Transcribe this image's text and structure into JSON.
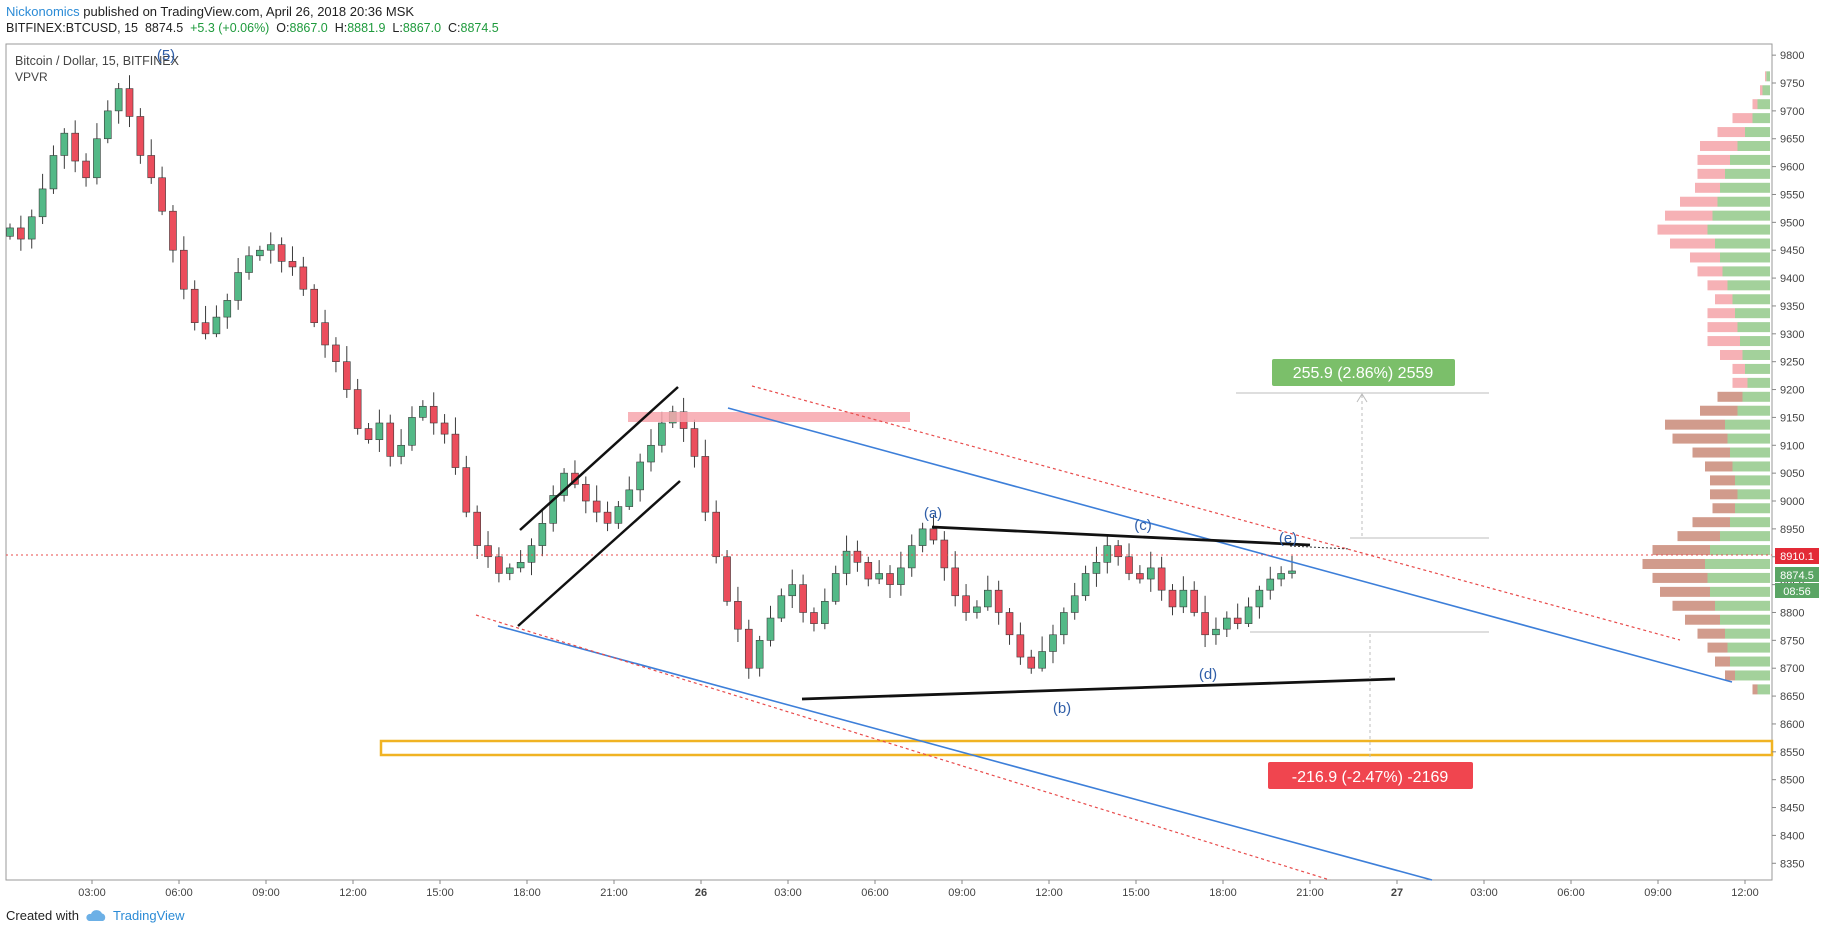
{
  "header": {
    "author": "Nickonomics",
    "published": " published on TradingView.com, April 26, 2018 20:36 MSK",
    "symbol": "BITFINEX:BTCUSD, 15",
    "last": "8874.5",
    "change": "+5.3 (+0.06%)",
    "o_label": "O:",
    "o": "8867.0",
    "h_label": "H:",
    "h": "8881.9",
    "l_label": "L:",
    "l": "8867.0",
    "c_label": "C:",
    "c": "8874.5"
  },
  "legend": {
    "title": "Bitcoin / Dollar, 15, BITFINEX",
    "indicator": "VPVR"
  },
  "footer": {
    "created_with": "Created with",
    "brand": "TradingView"
  },
  "colors": {
    "up": "#53b987",
    "down": "#eb4d5c",
    "trend_blue": "#3d7fd9",
    "dotted_red": "#e84b4b",
    "zone_yellow": "#f0b323",
    "zone_red": "#f7a6ad",
    "positive_badge": "#7bbf6a",
    "negative_badge": "#f0454f"
  },
  "chart_data": {
    "type": "candlestick",
    "y_range": [
      8320,
      9820
    ],
    "y_ticks": [
      8350,
      8400,
      8450,
      8500,
      8550,
      8600,
      8650,
      8700,
      8750,
      8800,
      8850,
      8900,
      8950,
      9000,
      9050,
      9100,
      9150,
      9200,
      9250,
      9300,
      9350,
      9400,
      9450,
      9500,
      9550,
      9600,
      9650,
      9700,
      9750,
      9800
    ],
    "x_labels": [
      "03:00",
      "06:00",
      "09:00",
      "12:00",
      "15:00",
      "18:00",
      "21:00",
      "26",
      "03:00",
      "06:00",
      "09:00",
      "12:00",
      "15:00",
      "18:00",
      "21:00",
      "27",
      "03:00",
      "06:00",
      "09:00",
      "12:00"
    ],
    "price_badges": [
      "8910.1",
      "8874.5",
      "08:56"
    ],
    "wave_labels": [
      "(5)",
      "(a)",
      "(b)",
      "(c)",
      "(d)",
      "(e)"
    ],
    "measure_up": "255.9 (2.86%) 2559",
    "measure_down": "-216.9 (-2.47%) -2169",
    "close_path": [
      9490,
      9470,
      9510,
      9560,
      9620,
      9660,
      9610,
      9580,
      9650,
      9700,
      9740,
      9690,
      9620,
      9580,
      9520,
      9450,
      9380,
      9320,
      9300,
      9330,
      9360,
      9410,
      9440,
      9450,
      9460,
      9430,
      9420,
      9380,
      9320,
      9280,
      9250,
      9200,
      9130,
      9110,
      9140,
      9080,
      9100,
      9150,
      9170,
      9140,
      9120,
      9060,
      8980,
      8920,
      8900,
      8870,
      8880,
      8890,
      8920,
      8960,
      9010,
      9050,
      9030,
      9000,
      8980,
      8960,
      8990,
      9020,
      9070,
      9100,
      9140,
      9160,
      9130,
      9080,
      8980,
      8900,
      8820,
      8770,
      8700,
      8750,
      8790,
      8830,
      8850,
      8800,
      8780,
      8820,
      8870,
      8910,
      8890,
      8860,
      8870,
      8850,
      8880,
      8920,
      8950,
      8930,
      8880,
      8830,
      8800,
      8810,
      8840,
      8800,
      8760,
      8720,
      8700,
      8730,
      8760,
      8800,
      8830,
      8870,
      8890,
      8920,
      8900,
      8870,
      8860,
      8880,
      8840,
      8810,
      8840,
      8800,
      8760,
      8770,
      8790,
      8780,
      8810,
      8840,
      8860,
      8870,
      8874.5
    ],
    "volume_profile": [
      {
        "price": 9762,
        "up": 3,
        "down": 1
      },
      {
        "price": 9737,
        "up": 6,
        "down": 2
      },
      {
        "price": 9712,
        "up": 10,
        "down": 4
      },
      {
        "price": 9687,
        "up": 14,
        "down": 16
      },
      {
        "price": 9662,
        "up": 20,
        "down": 22
      },
      {
        "price": 9637,
        "up": 26,
        "down": 30
      },
      {
        "price": 9612,
        "up": 32,
        "down": 26
      },
      {
        "price": 9587,
        "up": 36,
        "down": 22
      },
      {
        "price": 9562,
        "up": 40,
        "down": 20
      },
      {
        "price": 9537,
        "up": 42,
        "down": 30
      },
      {
        "price": 9512,
        "up": 46,
        "down": 38
      },
      {
        "price": 9487,
        "up": 50,
        "down": 40
      },
      {
        "price": 9462,
        "up": 44,
        "down": 36
      },
      {
        "price": 9437,
        "up": 40,
        "down": 24
      },
      {
        "price": 9412,
        "up": 38,
        "down": 20
      },
      {
        "price": 9387,
        "up": 34,
        "down": 16
      },
      {
        "price": 9362,
        "up": 30,
        "down": 14
      },
      {
        "price": 9337,
        "up": 28,
        "down": 22
      },
      {
        "price": 9312,
        "up": 26,
        "down": 24
      },
      {
        "price": 9287,
        "up": 24,
        "down": 26
      },
      {
        "price": 9262,
        "up": 22,
        "down": 18
      },
      {
        "price": 9237,
        "up": 20,
        "down": 10
      },
      {
        "price": 9212,
        "up": 18,
        "down": 12
      },
      {
        "price": 9187,
        "up": 22,
        "down": 20
      },
      {
        "price": 9162,
        "up": 26,
        "down": 30
      },
      {
        "price": 9137,
        "up": 36,
        "down": 48
      },
      {
        "price": 9112,
        "up": 34,
        "down": 44
      },
      {
        "price": 9087,
        "up": 32,
        "down": 30
      },
      {
        "price": 9062,
        "up": 30,
        "down": 22
      },
      {
        "price": 9037,
        "up": 28,
        "down": 20
      },
      {
        "price": 9012,
        "up": 26,
        "down": 22
      },
      {
        "price": 8987,
        "up": 28,
        "down": 18
      },
      {
        "price": 8962,
        "up": 32,
        "down": 30
      },
      {
        "price": 8937,
        "up": 40,
        "down": 34
      },
      {
        "price": 8912,
        "up": 48,
        "down": 46
      },
      {
        "price": 8887,
        "up": 52,
        "down": 50
      },
      {
        "price": 8862,
        "up": 50,
        "down": 44
      },
      {
        "price": 8837,
        "up": 48,
        "down": 40
      },
      {
        "price": 8812,
        "up": 44,
        "down": 34
      },
      {
        "price": 8787,
        "up": 40,
        "down": 28
      },
      {
        "price": 8762,
        "up": 36,
        "down": 22
      },
      {
        "price": 8737,
        "up": 34,
        "down": 16
      },
      {
        "price": 8712,
        "up": 32,
        "down": 12
      },
      {
        "price": 8687,
        "up": 28,
        "down": 8
      },
      {
        "price": 8662,
        "up": 10,
        "down": 4
      }
    ]
  }
}
